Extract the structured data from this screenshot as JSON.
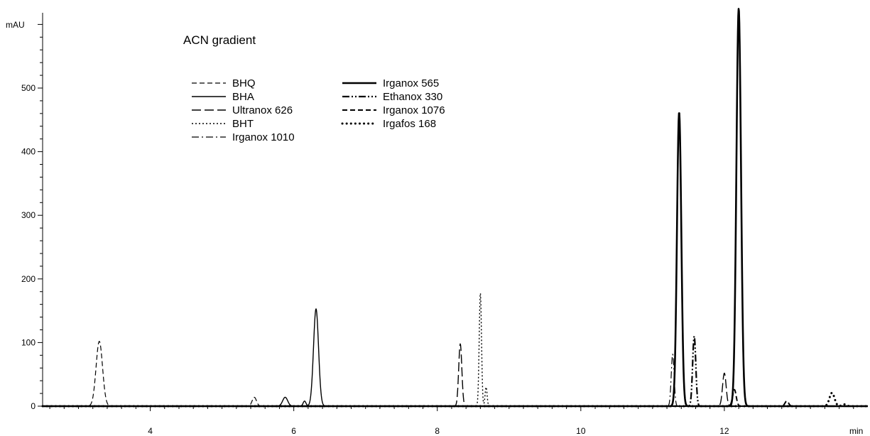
{
  "chart_data": {
    "type": "line",
    "title": "ACN gradient",
    "xlabel": "min",
    "ylabel": "mAU",
    "xlim": [
      2.5,
      14.0
    ],
    "ylim": [
      -5,
      610
    ],
    "xticks": [
      4,
      6,
      8,
      10,
      12
    ],
    "yticks": [
      0,
      100,
      200,
      300,
      400,
      500
    ],
    "xtick_labels": [
      "4",
      "6",
      "8",
      "10",
      "12"
    ],
    "ytick_labels": [
      "0",
      "100",
      "200",
      "300",
      "400",
      "500"
    ],
    "grid": false,
    "legend_placement": "top-left",
    "series": [
      {
        "name": "BHQ",
        "style": "dashed",
        "width": 1.2,
        "peaks": [
          {
            "x": 3.29,
            "h": 102,
            "w": 0.045
          },
          {
            "x": 5.45,
            "h": 14,
            "w": 0.03
          }
        ]
      },
      {
        "name": "BHA",
        "style": "solid",
        "width": 1.4,
        "peaks": [
          {
            "x": 5.88,
            "h": 14,
            "w": 0.035
          },
          {
            "x": 6.15,
            "h": 8,
            "w": 0.02
          },
          {
            "x": 6.31,
            "h": 153,
            "w": 0.035
          }
        ]
      },
      {
        "name": "Ultranox 626",
        "style": "longdash",
        "width": 1.4,
        "peaks": [
          {
            "x": 8.32,
            "h": 98,
            "w": 0.022
          },
          {
            "x": 12.0,
            "h": 52,
            "w": 0.025
          }
        ]
      },
      {
        "name": "BHT",
        "style": "dotted",
        "width": 1.4,
        "peaks": [
          {
            "x": 8.6,
            "h": 178,
            "w": 0.016
          },
          {
            "x": 8.68,
            "h": 30,
            "w": 0.014
          }
        ]
      },
      {
        "name": "Irganox 1010",
        "style": "dashdot",
        "width": 1.2,
        "peaks": [
          {
            "x": 11.28,
            "h": 82,
            "w": 0.02
          }
        ]
      },
      {
        "name": "Irganox 565",
        "style": "solid",
        "width": 2.6,
        "peaks": [
          {
            "x": 11.37,
            "h": 462,
            "w": 0.03
          },
          {
            "x": 12.2,
            "h": 625,
            "w": 0.032
          }
        ]
      },
      {
        "name": "Ethanox 330",
        "style": "dashdotdot",
        "width": 2.2,
        "peaks": [
          {
            "x": 11.58,
            "h": 110,
            "w": 0.022
          }
        ]
      },
      {
        "name": "Irganox 1076",
        "style": "dashed",
        "width": 2.0,
        "peaks": [
          {
            "x": 12.14,
            "h": 26,
            "w": 0.025
          },
          {
            "x": 12.87,
            "h": 8,
            "w": 0.025
          }
        ]
      },
      {
        "name": "Irgafos 168",
        "style": "bigdots",
        "width": 3.0,
        "peaks": [
          {
            "x": 13.5,
            "h": 21,
            "w": 0.035
          },
          {
            "x": 13.67,
            "h": 3,
            "w": 0.03
          }
        ]
      }
    ]
  }
}
